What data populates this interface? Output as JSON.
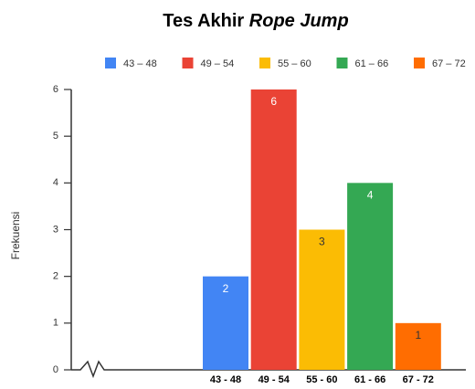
{
  "chart_data": {
    "type": "bar",
    "title": {
      "text": "Tes Akhir",
      "emphasis": "Rope Jump"
    },
    "y_label": "Frekuensi",
    "categories": [
      "43 - 48",
      "49 - 54",
      "55 - 60",
      "61 - 66",
      "67 - 72"
    ],
    "series": [
      {
        "name": "43 – 48",
        "color": "#4285f4",
        "label_color": "#ffffff",
        "values": [
          2,
          null,
          null,
          null,
          null
        ]
      },
      {
        "name": "49 – 54",
        "color": "#ea4335",
        "label_color": "#ffffff",
        "values": [
          null,
          6,
          null,
          null,
          null
        ]
      },
      {
        "name": "55 – 60",
        "color": "#fbbc04",
        "label_color": "#333333",
        "values": [
          null,
          null,
          3,
          null,
          null
        ]
      },
      {
        "name": "61 – 66",
        "color": "#34a853",
        "label_color": "#ffffff",
        "values": [
          null,
          null,
          null,
          4,
          null
        ]
      },
      {
        "name": "67 – 72",
        "color": "#ff6d01",
        "label_color": "#333333",
        "values": [
          null,
          null,
          null,
          null,
          1
        ]
      }
    ],
    "ylim": [
      0,
      6
    ],
    "yticks": [
      0,
      1,
      2,
      3,
      4,
      5,
      6
    ],
    "legend": "top"
  }
}
